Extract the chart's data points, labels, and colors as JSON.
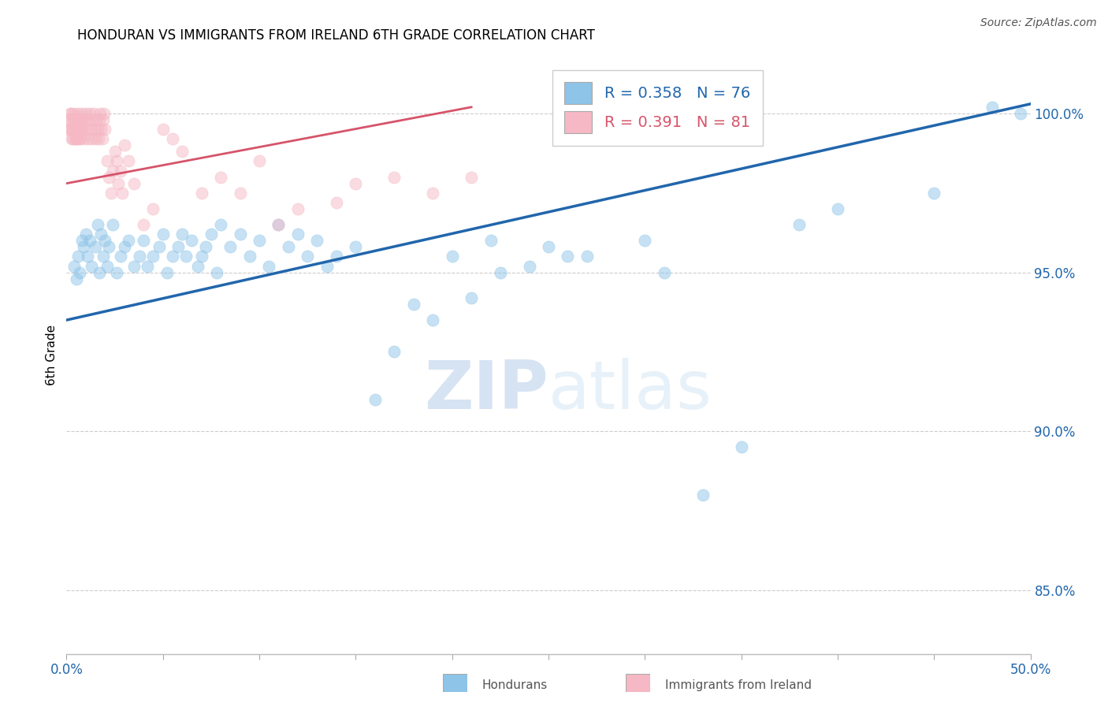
{
  "title": "HONDURAN VS IMMIGRANTS FROM IRELAND 6TH GRADE CORRELATION CHART",
  "source": "Source: ZipAtlas.com",
  "ylabel": "6th Grade",
  "yticks": [
    85.0,
    90.0,
    95.0,
    100.0
  ],
  "ytick_labels": [
    "85.0%",
    "90.0%",
    "95.0%",
    "100.0%"
  ],
  "xmin": 0.0,
  "xmax": 50.0,
  "ymin": 83.0,
  "ymax": 101.8,
  "blue_R": 0.358,
  "blue_N": 76,
  "pink_R": 0.391,
  "pink_N": 81,
  "blue_color": "#8ec4e8",
  "pink_color": "#f5b8c4",
  "blue_line_color": "#2166ac",
  "pink_line_color": "#d6546a",
  "legend_label_blue": "Hondurans",
  "legend_label_pink": "Immigrants from Ireland",
  "watermark_zip": "ZIP",
  "watermark_atlas": "atlas",
  "blue_line_x0": 0.0,
  "blue_line_y0": 93.5,
  "blue_line_x1": 50.0,
  "blue_line_y1": 100.3,
  "pink_line_x0": 0.0,
  "pink_line_y0": 97.8,
  "pink_line_x1": 21.0,
  "pink_line_y1": 100.2,
  "blue_scatter_x": [
    0.4,
    0.5,
    0.6,
    0.7,
    0.8,
    0.9,
    1.0,
    1.1,
    1.2,
    1.3,
    1.5,
    1.6,
    1.7,
    1.8,
    1.9,
    2.0,
    2.1,
    2.2,
    2.4,
    2.6,
    2.8,
    3.0,
    3.2,
    3.5,
    3.8,
    4.0,
    4.2,
    4.5,
    4.8,
    5.0,
    5.2,
    5.5,
    5.8,
    6.0,
    6.2,
    6.5,
    6.8,
    7.0,
    7.2,
    7.5,
    7.8,
    8.0,
    8.5,
    9.0,
    9.5,
    10.0,
    10.5,
    11.0,
    11.5,
    12.0,
    12.5,
    13.0,
    13.5,
    14.0,
    15.0,
    16.0,
    17.0,
    18.0,
    19.0,
    20.0,
    22.0,
    24.0,
    25.0,
    27.0,
    30.0,
    33.0,
    35.0,
    40.0,
    45.0,
    48.0,
    49.5,
    21.0,
    22.5,
    26.0,
    31.0,
    38.0
  ],
  "blue_scatter_y": [
    95.2,
    94.8,
    95.5,
    95.0,
    96.0,
    95.8,
    96.2,
    95.5,
    96.0,
    95.2,
    95.8,
    96.5,
    95.0,
    96.2,
    95.5,
    96.0,
    95.2,
    95.8,
    96.5,
    95.0,
    95.5,
    95.8,
    96.0,
    95.2,
    95.5,
    96.0,
    95.2,
    95.5,
    95.8,
    96.2,
    95.0,
    95.5,
    95.8,
    96.2,
    95.5,
    96.0,
    95.2,
    95.5,
    95.8,
    96.2,
    95.0,
    96.5,
    95.8,
    96.2,
    95.5,
    96.0,
    95.2,
    96.5,
    95.8,
    96.2,
    95.5,
    96.0,
    95.2,
    95.5,
    95.8,
    91.0,
    92.5,
    94.0,
    93.5,
    95.5,
    96.0,
    95.2,
    95.8,
    95.5,
    96.0,
    88.0,
    89.5,
    97.0,
    97.5,
    100.2,
    100.0,
    94.2,
    95.0,
    95.5,
    95.0,
    96.5
  ],
  "pink_scatter_x": [
    0.1,
    0.15,
    0.2,
    0.25,
    0.3,
    0.35,
    0.4,
    0.45,
    0.5,
    0.55,
    0.6,
    0.65,
    0.7,
    0.75,
    0.8,
    0.85,
    0.9,
    0.95,
    1.0,
    1.05,
    1.1,
    1.15,
    1.2,
    1.25,
    1.3,
    1.35,
    1.4,
    1.45,
    1.5,
    1.55,
    1.6,
    1.65,
    1.7,
    1.75,
    1.8,
    1.85,
    1.9,
    1.95,
    2.0,
    2.1,
    2.2,
    2.3,
    2.4,
    2.5,
    2.6,
    2.7,
    2.8,
    2.9,
    3.0,
    3.2,
    3.5,
    4.0,
    4.5,
    5.0,
    5.5,
    6.0,
    7.0,
    8.0,
    9.0,
    10.0,
    11.0,
    12.0,
    14.0,
    15.0,
    17.0,
    19.0,
    21.0,
    0.12,
    0.18,
    0.22,
    0.28,
    0.32,
    0.38,
    0.42,
    0.48,
    0.52,
    0.58,
    0.62,
    0.68,
    0.72,
    0.78
  ],
  "pink_scatter_y": [
    99.5,
    99.8,
    100.0,
    99.5,
    99.2,
    99.8,
    100.0,
    99.5,
    99.2,
    99.8,
    100.0,
    99.5,
    99.2,
    99.8,
    100.0,
    99.5,
    99.2,
    99.8,
    100.0,
    99.5,
    99.2,
    99.8,
    100.0,
    99.5,
    99.2,
    99.8,
    100.0,
    99.5,
    99.2,
    99.8,
    99.5,
    99.2,
    99.8,
    100.0,
    99.5,
    99.2,
    99.8,
    100.0,
    99.5,
    98.5,
    98.0,
    97.5,
    98.2,
    98.8,
    98.5,
    97.8,
    98.2,
    97.5,
    99.0,
    98.5,
    97.8,
    96.5,
    97.0,
    99.5,
    99.2,
    98.8,
    97.5,
    98.0,
    97.5,
    98.5,
    96.5,
    97.0,
    97.2,
    97.8,
    98.0,
    97.5,
    98.0,
    99.5,
    99.8,
    100.0,
    99.2,
    99.5,
    99.8,
    99.2,
    99.5,
    99.2,
    99.8,
    99.5,
    99.2,
    99.8,
    99.5
  ]
}
